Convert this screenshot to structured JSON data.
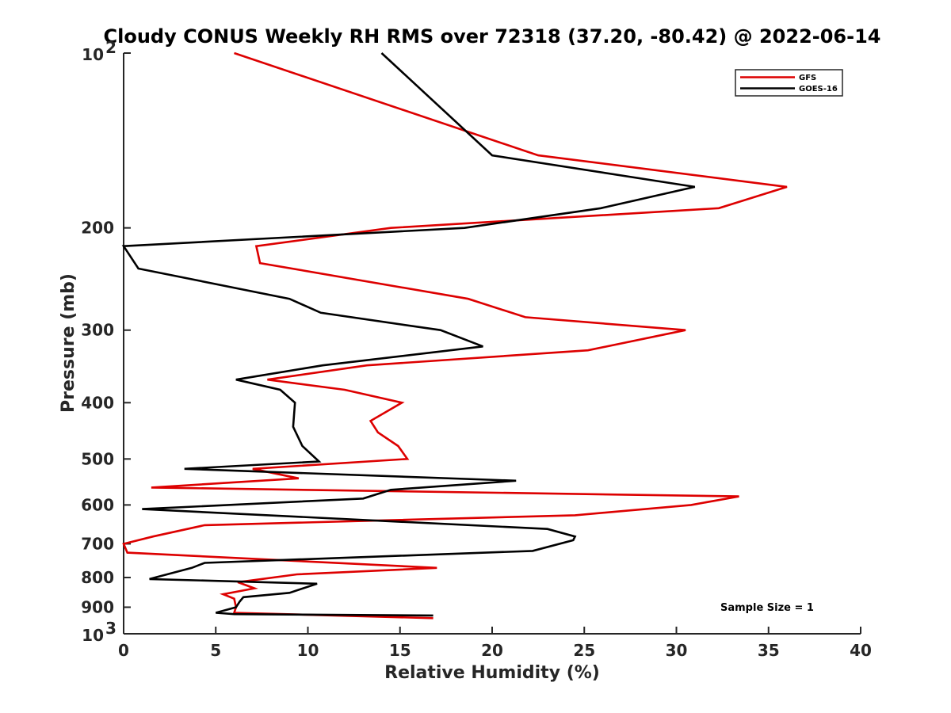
{
  "chart_data": {
    "type": "line",
    "title": "Cloudy CONUS Weekly RH RMS over 72318 (37.20, -80.42) @ 2022-06-14",
    "xlabel": "Relative Humidity (%)",
    "ylabel": "Pressure (mb)",
    "xlim": [
      0,
      40
    ],
    "ylim": [
      100,
      1000
    ],
    "yscale": "log",
    "yreversed": true,
    "grid": false,
    "legend_position": "top-right",
    "x_ticks": [
      "0",
      "5",
      "10",
      "15",
      "20",
      "25",
      "30",
      "35",
      "40"
    ],
    "x_tick_values": [
      0,
      5,
      10,
      15,
      20,
      25,
      30,
      35,
      40
    ],
    "y_ticks": [
      {
        "value": 100,
        "base": "10",
        "exp": "2"
      },
      {
        "value": 200,
        "label": "200"
      },
      {
        "value": 300,
        "label": "300"
      },
      {
        "value": 400,
        "label": "400"
      },
      {
        "value": 500,
        "label": "500"
      },
      {
        "value": 600,
        "label": "600"
      },
      {
        "value": 700,
        "label": "700"
      },
      {
        "value": 800,
        "label": "800"
      },
      {
        "value": 900,
        "label": "900"
      },
      {
        "value": 1000,
        "base": "10",
        "exp": "3"
      }
    ],
    "series": [
      {
        "name": "GFS",
        "color": "#dd0000",
        "points": [
          [
            6.0,
            100
          ],
          [
            22.5,
            150
          ],
          [
            36.0,
            170
          ],
          [
            32.3,
            185
          ],
          [
            14.5,
            200
          ],
          [
            7.2,
            215
          ],
          [
            7.4,
            230
          ],
          [
            18.7,
            265
          ],
          [
            21.8,
            285
          ],
          [
            30.5,
            300
          ],
          [
            25.2,
            325
          ],
          [
            13.2,
            345
          ],
          [
            7.8,
            365
          ],
          [
            12.0,
            380
          ],
          [
            15.1,
            400
          ],
          [
            13.4,
            430
          ],
          [
            13.8,
            450
          ],
          [
            14.9,
            475
          ],
          [
            15.4,
            500
          ],
          [
            7.0,
            520
          ],
          [
            9.5,
            540
          ],
          [
            1.5,
            560
          ],
          [
            33.4,
            580
          ],
          [
            30.8,
            600
          ],
          [
            24.5,
            625
          ],
          [
            4.4,
            650
          ],
          [
            1.6,
            680
          ],
          [
            0.0,
            700
          ],
          [
            0.2,
            725
          ],
          [
            17.0,
            770
          ],
          [
            9.4,
            790
          ],
          [
            6.2,
            815
          ],
          [
            7.1,
            835
          ],
          [
            5.4,
            855
          ],
          [
            6.0,
            870
          ],
          [
            6.1,
            900
          ],
          [
            6.0,
            920
          ],
          [
            16.8,
            940
          ]
        ]
      },
      {
        "name": "GOES-16",
        "color": "#000000",
        "points": [
          [
            14.0,
            100
          ],
          [
            20.0,
            150
          ],
          [
            31.0,
            170
          ],
          [
            25.9,
            185
          ],
          [
            18.5,
            200
          ],
          [
            0.0,
            215
          ],
          [
            0.8,
            235
          ],
          [
            9.0,
            265
          ],
          [
            10.7,
            280
          ],
          [
            17.2,
            300
          ],
          [
            19.5,
            320
          ],
          [
            10.8,
            345
          ],
          [
            6.1,
            365
          ],
          [
            8.5,
            380
          ],
          [
            9.3,
            400
          ],
          [
            9.2,
            440
          ],
          [
            9.7,
            475
          ],
          [
            10.6,
            505
          ],
          [
            3.3,
            520
          ],
          [
            21.3,
            545
          ],
          [
            14.5,
            565
          ],
          [
            13.0,
            585
          ],
          [
            1.0,
            610
          ],
          [
            23.0,
            660
          ],
          [
            24.5,
            680
          ],
          [
            24.4,
            690
          ],
          [
            22.2,
            720
          ],
          [
            4.4,
            755
          ],
          [
            3.7,
            770
          ],
          [
            1.4,
            805
          ],
          [
            10.5,
            820
          ],
          [
            9.0,
            850
          ],
          [
            6.5,
            865
          ],
          [
            6.3,
            880
          ],
          [
            6.1,
            900
          ],
          [
            5.0,
            920
          ],
          [
            6.0,
            925
          ],
          [
            16.8,
            930
          ]
        ]
      }
    ],
    "annotations": [
      {
        "text": "Sample Size = 1"
      }
    ]
  }
}
